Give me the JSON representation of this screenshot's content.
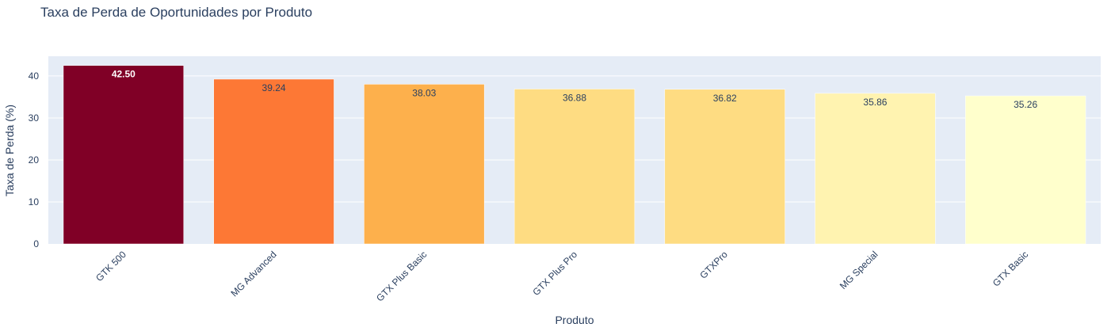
{
  "chart_data": {
    "type": "bar",
    "title": "Taxa de Perda de Oportunidades por Produto",
    "xlabel": "Produto",
    "ylabel": "Taxa de Perda (%)",
    "categories": [
      "GTK 500",
      "MG Advanced",
      "GTX Plus Basic",
      "GTX Plus Pro",
      "GTXPro",
      "MG Special",
      "GTX Basic"
    ],
    "values": [
      42.5,
      39.24,
      38.03,
      36.88,
      36.82,
      35.86,
      35.26
    ],
    "value_labels": [
      "42.50",
      "39.24",
      "38.03",
      "36.88",
      "36.82",
      "35.86",
      "35.26"
    ],
    "bar_colors": [
      "#800026",
      "#fd7835",
      "#fdb04c",
      "#fedc82",
      "#fedc82",
      "#fff3b0",
      "#ffffcc"
    ],
    "label_colors": [
      "#ffffff",
      "#2a3f5f",
      "#2a3f5f",
      "#2a3f5f",
      "#2a3f5f",
      "#2a3f5f",
      "#2a3f5f"
    ],
    "ylim": [
      0,
      44.7
    ],
    "yticks": [
      0,
      10,
      20,
      30,
      40
    ],
    "grid": true,
    "legend": "none",
    "plot_background": "#e5ecf6",
    "text_color": "#2a3f5f"
  }
}
